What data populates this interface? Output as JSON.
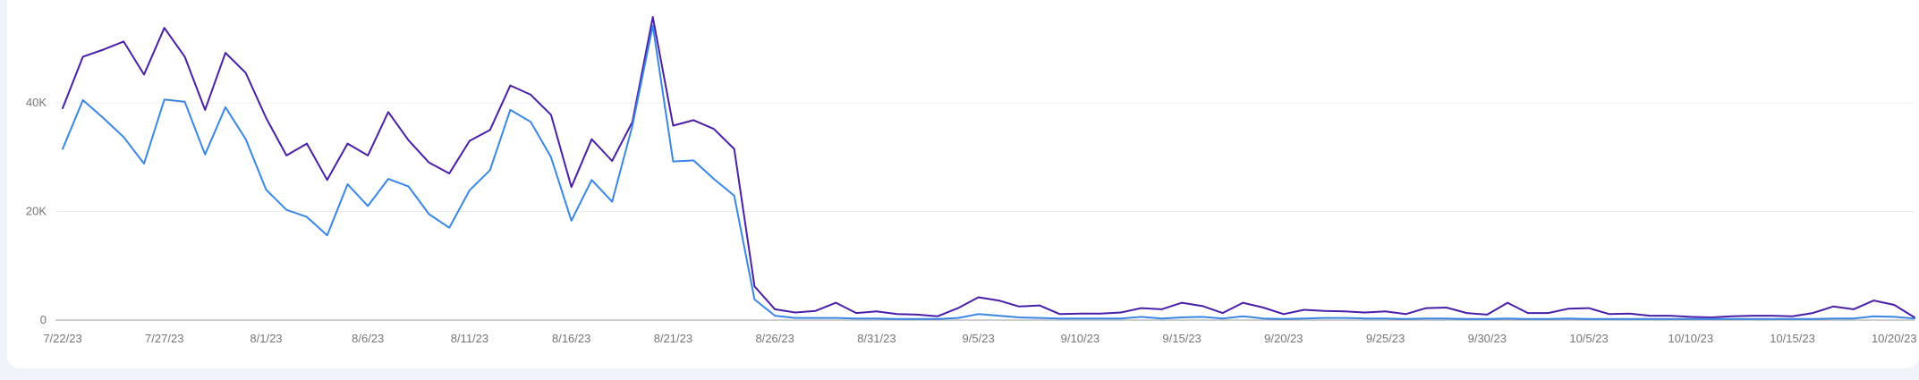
{
  "chart_data": {
    "type": "line",
    "title": "",
    "xlabel": "",
    "ylabel": "",
    "ylim": [
      0,
      55000
    ],
    "grid": true,
    "legend": "none",
    "y_ticks": [
      {
        "value": 0,
        "label": "0"
      },
      {
        "value": 20000,
        "label": "20K"
      },
      {
        "value": 40000,
        "label": "40K"
      }
    ],
    "x_ticks": [
      {
        "index": 0,
        "label": "7/22/23"
      },
      {
        "index": 5,
        "label": "7/27/23"
      },
      {
        "index": 10,
        "label": "8/1/23"
      },
      {
        "index": 15,
        "label": "8/6/23"
      },
      {
        "index": 20,
        "label": "8/11/23"
      },
      {
        "index": 25,
        "label": "8/16/23"
      },
      {
        "index": 30,
        "label": "8/21/23"
      },
      {
        "index": 35,
        "label": "8/26/23"
      },
      {
        "index": 40,
        "label": "8/31/23"
      },
      {
        "index": 45,
        "label": "9/5/23"
      },
      {
        "index": 50,
        "label": "9/10/23"
      },
      {
        "index": 55,
        "label": "9/15/23"
      },
      {
        "index": 60,
        "label": "9/20/23"
      },
      {
        "index": 65,
        "label": "9/25/23"
      },
      {
        "index": 70,
        "label": "9/30/23"
      },
      {
        "index": 75,
        "label": "10/5/23"
      },
      {
        "index": 80,
        "label": "10/10/23"
      },
      {
        "index": 85,
        "label": "10/15/23"
      },
      {
        "index": 90,
        "label": "10/20/23"
      }
    ],
    "series": [
      {
        "color": "#4a1fa8",
        "values": [
          39000,
          48500,
          49800,
          51300,
          45200,
          53800,
          48500,
          38700,
          49200,
          45500,
          37200,
          30300,
          32500,
          25800,
          32500,
          30300,
          38300,
          33100,
          29000,
          27000,
          33000,
          35000,
          43200,
          41500,
          37800,
          24500,
          33300,
          29300,
          36500,
          55800,
          35800,
          36800,
          35200,
          31500,
          6200,
          2000,
          1400,
          1700,
          3200,
          1300,
          1600,
          1100,
          1000,
          700,
          2200,
          4200,
          3600,
          2500,
          2700,
          1100,
          1200,
          1200,
          1400,
          2200,
          2000,
          3200,
          2600,
          1300,
          3200,
          2300,
          1100,
          1900,
          1700,
          1600,
          1400,
          1600,
          1100,
          2200,
          2300,
          1300,
          1000,
          3200,
          1300,
          1300,
          2100,
          2200,
          1100,
          1200,
          800,
          800,
          600,
          500,
          700,
          800,
          800,
          700,
          1300,
          2500,
          2000,
          3600,
          2800,
          500
        ]
      },
      {
        "color": "#3a86e5",
        "values": [
          31500,
          40500,
          37200,
          33700,
          28800,
          40600,
          40200,
          30500,
          39200,
          33300,
          24000,
          20300,
          19000,
          15600,
          25000,
          21000,
          26000,
          24600,
          19500,
          17000,
          23900,
          27600,
          38700,
          36500,
          30000,
          18300,
          25800,
          21800,
          35800,
          54200,
          29200,
          29400,
          26000,
          22900,
          3800,
          800,
          400,
          400,
          400,
          300,
          300,
          200,
          200,
          200,
          400,
          1100,
          800,
          500,
          400,
          300,
          300,
          300,
          300,
          600,
          300,
          500,
          600,
          300,
          700,
          300,
          200,
          300,
          400,
          400,
          300,
          300,
          200,
          300,
          300,
          200,
          200,
          300,
          200,
          200,
          300,
          200,
          200,
          200,
          200,
          200,
          200,
          200,
          200,
          200,
          200,
          200,
          200,
          300,
          300,
          700,
          600,
          300
        ]
      }
    ]
  }
}
